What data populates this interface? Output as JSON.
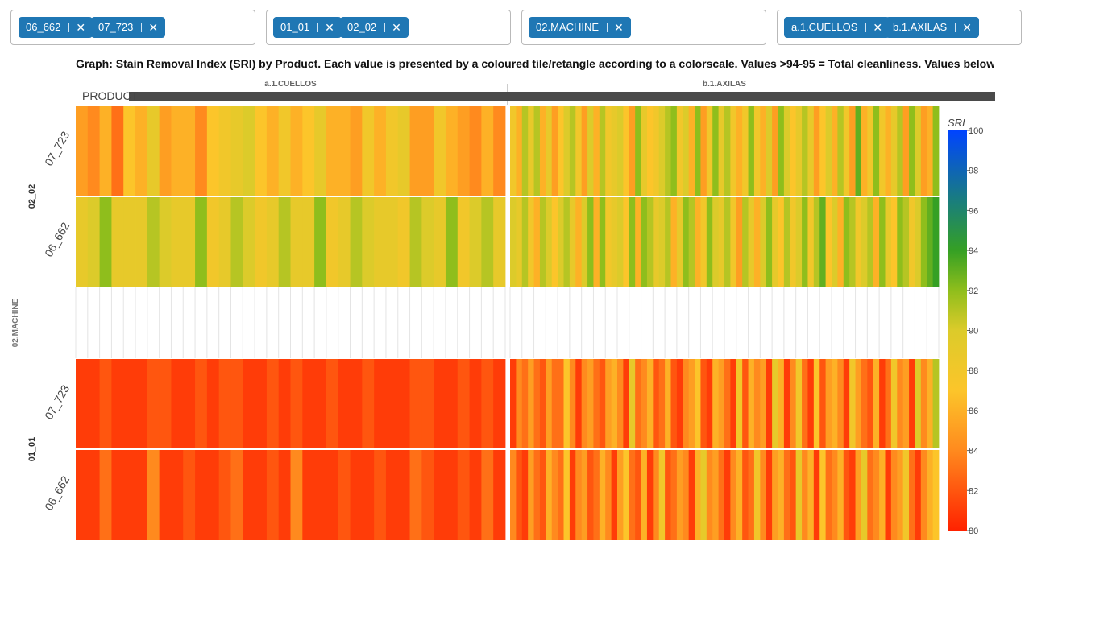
{
  "filters": [
    {
      "chips": [
        "06_662",
        "07_723"
      ]
    },
    {
      "chips": [
        "01_01",
        "02_02"
      ]
    },
    {
      "chips": [
        "02.MACHINE"
      ]
    },
    {
      "chips": [
        "a.1.CUELLOS",
        "b.1.AXILAS"
      ]
    }
  ],
  "remove_glyph": "✕",
  "title": "Graph: Stain Removal Index (SRI) by Product. Each value is presented by a coloured tile/retangle according to a colorscale. Values >94-95 = Total cleanliness. Values below",
  "chart_data": {
    "type": "heatmap",
    "title": "Graph: Stain Removal Index (SRI) by Product. Each value is presented by a coloured tile/retangle according to a colorscale. Values >94-95 = Total cleanliness. Values below",
    "x_axis_label": "PRODUCT",
    "y_outer_label": "02.MACHINE",
    "column_facets": [
      "a.1.CUELLOS",
      "b.1.AXILAS"
    ],
    "row_groups": [
      {
        "label": "02_02",
        "rows": [
          "07_723",
          "06_662"
        ]
      },
      {
        "label": "",
        "rows": [
          "(empty)"
        ]
      },
      {
        "label": "01_01",
        "rows": [
          "07_723",
          "06_662"
        ]
      }
    ],
    "colorbar": {
      "title": "SRI",
      "min": 80,
      "max": 100,
      "ticks": [
        80,
        82,
        84,
        86,
        88,
        90,
        92,
        94,
        96,
        98,
        100
      ]
    },
    "values": {
      "a.1.CUELLOS": {
        "02_02|07_723": [
          85,
          84,
          86,
          83,
          87,
          86,
          89,
          85,
          86,
          86,
          84,
          87,
          88,
          89,
          90,
          87,
          86,
          88,
          86,
          87,
          89,
          86,
          86,
          85,
          88,
          86,
          88,
          89,
          85,
          85,
          88,
          86,
          85,
          84,
          86,
          84
        ],
        "02_02|06_662": [
          89,
          90,
          92,
          89,
          89,
          89,
          91,
          90,
          89,
          89,
          92,
          88,
          89,
          91,
          90,
          88,
          89,
          91,
          89,
          89,
          92,
          88,
          89,
          91,
          90,
          89,
          89,
          88,
          91,
          90,
          89,
          92,
          88,
          90,
          91,
          89
        ],
        "empty|(empty)": [],
        "01_01|07_723": [
          81,
          81,
          82,
          81,
          81,
          81,
          82,
          82,
          81,
          81,
          82,
          81,
          82,
          82,
          81,
          81,
          82,
          81,
          82,
          81,
          81,
          82,
          81,
          81,
          82,
          81,
          81,
          81,
          82,
          82,
          81,
          81,
          82,
          81,
          82,
          81
        ],
        "01_01|06_662": [
          81,
          81,
          83,
          81,
          81,
          81,
          84,
          81,
          81,
          82,
          81,
          81,
          82,
          83,
          81,
          81,
          82,
          81,
          84,
          81,
          81,
          81,
          82,
          81,
          81,
          82,
          81,
          81,
          83,
          82,
          81,
          81,
          82,
          81,
          83,
          81
        ]
      },
      "b.1.AXILAS": {
        "02_02|07_723": [
          88,
          86,
          91,
          89,
          91,
          86,
          89,
          85,
          87,
          90,
          91,
          88,
          85,
          90,
          86,
          91,
          88,
          89,
          90,
          87,
          85,
          92,
          89,
          87,
          88,
          90,
          91,
          92,
          88,
          90,
          86,
          92,
          85,
          88,
          92,
          89,
          91,
          88,
          86,
          88,
          92,
          88,
          86,
          90,
          85,
          92,
          90,
          87,
          89,
          91,
          89,
          85,
          87,
          90,
          86,
          91,
          88,
          85,
          93,
          86,
          88,
          92,
          88,
          86,
          89,
          91,
          85,
          92,
          90,
          85,
          86,
          92
        ],
        "02_02|06_662": [
          90,
          89,
          91,
          88,
          86,
          91,
          90,
          87,
          90,
          91,
          89,
          86,
          90,
          92,
          86,
          92,
          88,
          89,
          90,
          87,
          92,
          86,
          92,
          91,
          89,
          90,
          91,
          86,
          89,
          92,
          91,
          86,
          88,
          92,
          90,
          89,
          91,
          88,
          85,
          91,
          89,
          86,
          90,
          92,
          89,
          87,
          91,
          88,
          90,
          92,
          88,
          91,
          93,
          87,
          90,
          86,
          92,
          91,
          88,
          90,
          91,
          86,
          92,
          89,
          87,
          92,
          91,
          88,
          90,
          92,
          93,
          94
        ],
        "empty|(empty)": [],
        "01_01|07_723": [
          81,
          84,
          83,
          85,
          83,
          82,
          85,
          83,
          83,
          87,
          84,
          81,
          84,
          85,
          83,
          82,
          85,
          86,
          84,
          81,
          89,
          83,
          84,
          86,
          82,
          83,
          86,
          82,
          81,
          84,
          85,
          87,
          82,
          81,
          86,
          85,
          83,
          81,
          88,
          82,
          86,
          84,
          85,
          81,
          89,
          86,
          81,
          84,
          88,
          83,
          81,
          87,
          82,
          85,
          86,
          84,
          81,
          88,
          85,
          83,
          82,
          86,
          81,
          83,
          88,
          84,
          85,
          81,
          90,
          84,
          86,
          91
        ],
        "01_01|06_662": [
          84,
          82,
          81,
          85,
          83,
          82,
          86,
          84,
          83,
          87,
          81,
          84,
          85,
          82,
          83,
          86,
          84,
          81,
          85,
          87,
          83,
          82,
          86,
          81,
          84,
          88,
          82,
          83,
          85,
          84,
          81,
          86,
          89,
          84,
          85,
          83,
          81,
          84,
          86,
          82,
          83,
          88,
          84,
          81,
          85,
          86,
          83,
          82,
          89,
          84,
          86,
          81,
          87,
          83,
          84,
          86,
          82,
          81,
          85,
          89,
          83,
          84,
          86,
          81,
          84,
          85,
          88,
          83,
          81,
          84,
          86,
          87
        ]
      }
    }
  }
}
